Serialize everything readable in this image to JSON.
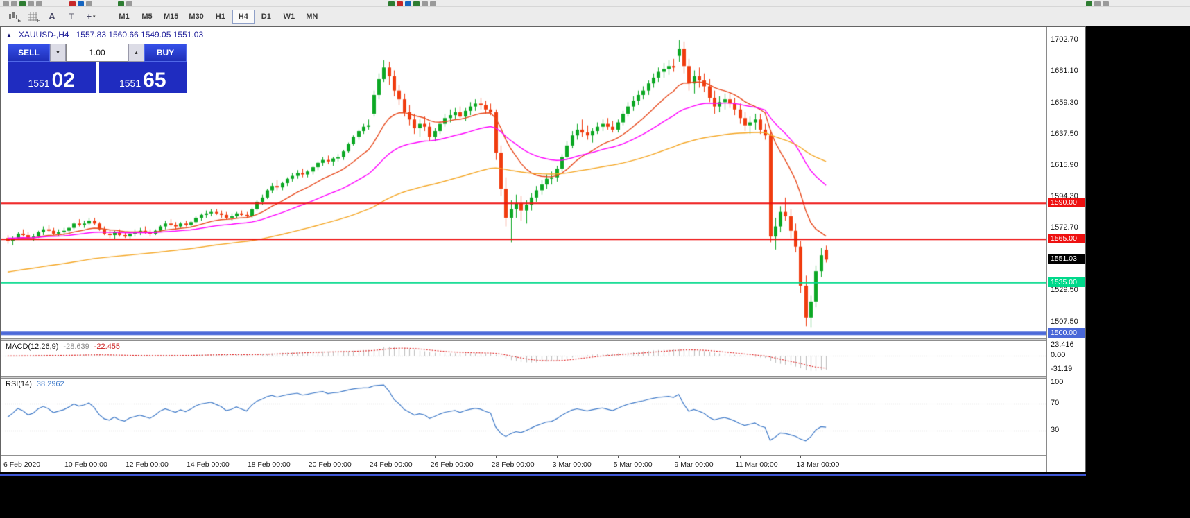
{
  "icons": {
    "triangle_up": "▲",
    "caret_down": "▼",
    "caret_up": "▲",
    "dropdown": "▾"
  },
  "toolbar": {
    "tools": [
      {
        "name": "charts-tool",
        "sub": "E"
      },
      {
        "name": "grid-tool",
        "sub": "F"
      },
      {
        "name": "text-label-tool",
        "glyph": "A"
      },
      {
        "name": "text-tool",
        "glyph": "T"
      },
      {
        "name": "crosshair-tool",
        "glyph": "+"
      }
    ],
    "timeframes": [
      "M1",
      "M5",
      "M15",
      "M30",
      "H1",
      "H4",
      "D1",
      "W1",
      "MN"
    ],
    "active_timeframe": "H4"
  },
  "chart": {
    "symbol_period": "XAUUSD-,H4",
    "ohlc_text": "1557.83 1560.66 1549.05 1551.03"
  },
  "trade_panel": {
    "sell_label": "SELL",
    "buy_label": "BUY",
    "volume": "1.00",
    "sell_price_main": "1551",
    "sell_price_pips": "02",
    "buy_price_main": "1551",
    "buy_price_pips": "65"
  },
  "price_axis": {
    "labels": [
      {
        "text": "1702.70",
        "value": 1702.7
      },
      {
        "text": "1681.10",
        "value": 1681.1
      },
      {
        "text": "1659.30",
        "value": 1659.3
      },
      {
        "text": "1637.50",
        "value": 1637.5
      },
      {
        "text": "1615.90",
        "value": 1615.9
      },
      {
        "text": "1594.30",
        "value": 1594.3
      },
      {
        "text": "1572.70",
        "value": 1572.7
      },
      {
        "text": "1529.50",
        "value": 1529.5
      },
      {
        "text": "1507.50",
        "value": 1507.5
      }
    ],
    "current_price": {
      "text": "1551.03",
      "value": 1551.03,
      "bg": "#000000",
      "fg": "#ffffff"
    }
  },
  "hlines": [
    {
      "label": "1590.00",
      "price": 1590.0,
      "color": "#ee1111",
      "thickness": 2
    },
    {
      "label": "1565.00",
      "price": 1565.0,
      "color": "#ee1111",
      "thickness": 2
    },
    {
      "label": "1535.00",
      "price": 1535.0,
      "color": "#00d98b",
      "thickness": 2
    },
    {
      "label": "1500.00",
      "price": 1500.0,
      "color": "#4a68d8",
      "thickness": 5
    }
  ],
  "macd_panel": {
    "name": "MACD(12,26,9)",
    "value1": "-28.639",
    "value2": "-22.455",
    "axis_labels": [
      {
        "text": "23.416",
        "value": 23.416
      },
      {
        "text": "0.00",
        "value": 0
      },
      {
        "text": "-31.19",
        "value": -31.19
      }
    ]
  },
  "rsi_panel": {
    "name": "RSI(14)",
    "value": "38.2962",
    "axis_labels": [
      {
        "text": "100",
        "value": 100
      },
      {
        "text": "70",
        "value": 70
      },
      {
        "text": "30",
        "value": 30
      }
    ],
    "levels": [
      70,
      30
    ]
  },
  "time_axis": {
    "labels": [
      {
        "candle_index": 0,
        "text": "6 Feb 2020"
      },
      {
        "candle_index": 12,
        "text": "10 Feb 00:00"
      },
      {
        "candle_index": 24,
        "text": "12 Feb 00:00"
      },
      {
        "candle_index": 36,
        "text": "14 Feb 00:00"
      },
      {
        "candle_index": 48,
        "text": "18 Feb 00:00"
      },
      {
        "candle_index": 60,
        "text": "20 Feb 00:00"
      },
      {
        "candle_index": 72,
        "text": "24 Feb 00:00"
      },
      {
        "candle_index": 84,
        "text": "26 Feb 00:00"
      },
      {
        "candle_index": 96,
        "text": "28 Feb 00:00"
      },
      {
        "candle_index": 108,
        "text": "3 Mar 00:00"
      },
      {
        "candle_index": 120,
        "text": "5 Mar 00:00"
      },
      {
        "candle_index": 132,
        "text": "9 Mar 00:00"
      },
      {
        "candle_index": 144,
        "text": "11 Mar 00:00"
      },
      {
        "candle_index": 156,
        "text": "13 Mar 00:00"
      }
    ]
  },
  "chart_data": {
    "type": "candlestick",
    "symbol": "XAUUSD",
    "timeframe": "H4",
    "price_range": [
      1496.5,
      1712
    ],
    "colors": {
      "up": "#0ca824",
      "down": "#f03c0f"
    },
    "moving_averages": [
      {
        "name": "fast-ma",
        "color": "#e8491c",
        "period": 14,
        "seed": 1565
      },
      {
        "name": "medium-ma",
        "color": "#ff00ff",
        "period": 34,
        "seed": 1566
      },
      {
        "name": "slow-ma",
        "color": "#f5a623",
        "period": 90,
        "seed": 1542
      }
    ],
    "macd": {
      "fast": 12,
      "slow": 26,
      "signal": 9,
      "histogram_color": "#bdbdbd",
      "signal_color": "#dd0000",
      "range": [
        -44.5,
        33
      ]
    },
    "rsi": {
      "period": 14,
      "color": "#3c78c8",
      "range": [
        -5,
        106
      ]
    },
    "candles": [
      [
        1566,
        1568,
        1562,
        1564
      ],
      [
        1564,
        1567,
        1561,
        1566
      ],
      [
        1566,
        1570,
        1565,
        1569
      ],
      [
        1569,
        1572,
        1567,
        1568
      ],
      [
        1568,
        1570,
        1565,
        1566
      ],
      [
        1566,
        1569,
        1564,
        1567
      ],
      [
        1567,
        1571,
        1566,
        1570
      ],
      [
        1570,
        1574,
        1568,
        1572
      ],
      [
        1572,
        1575,
        1570,
        1571
      ],
      [
        1571,
        1573,
        1568,
        1569
      ],
      [
        1569,
        1572,
        1567,
        1570
      ],
      [
        1570,
        1573,
        1568,
        1571
      ],
      [
        1571,
        1574,
        1569,
        1573
      ],
      [
        1573,
        1577,
        1572,
        1576
      ],
      [
        1576,
        1579,
        1574,
        1575
      ],
      [
        1575,
        1578,
        1573,
        1576
      ],
      [
        1576,
        1580,
        1575,
        1578
      ],
      [
        1578,
        1580,
        1575,
        1576
      ],
      [
        1576,
        1577,
        1571,
        1572
      ],
      [
        1572,
        1574,
        1568,
        1569
      ],
      [
        1569,
        1572,
        1566,
        1568
      ],
      [
        1568,
        1571,
        1565,
        1570
      ],
      [
        1570,
        1572,
        1567,
        1568
      ],
      [
        1568,
        1570,
        1566,
        1567
      ],
      [
        1567,
        1570,
        1565,
        1569
      ],
      [
        1569,
        1572,
        1567,
        1570
      ],
      [
        1570,
        1573,
        1568,
        1571
      ],
      [
        1571,
        1574,
        1569,
        1570
      ],
      [
        1570,
        1572,
        1567,
        1569
      ],
      [
        1569,
        1572,
        1568,
        1571
      ],
      [
        1571,
        1575,
        1570,
        1574
      ],
      [
        1574,
        1578,
        1572,
        1576
      ],
      [
        1576,
        1579,
        1574,
        1575
      ],
      [
        1575,
        1577,
        1572,
        1574
      ],
      [
        1574,
        1577,
        1573,
        1576
      ],
      [
        1576,
        1578,
        1574,
        1575
      ],
      [
        1575,
        1578,
        1573,
        1577
      ],
      [
        1577,
        1581,
        1576,
        1580
      ],
      [
        1580,
        1583,
        1578,
        1582
      ],
      [
        1582,
        1585,
        1580,
        1583
      ],
      [
        1583,
        1586,
        1581,
        1584
      ],
      [
        1584,
        1586,
        1582,
        1583
      ],
      [
        1583,
        1585,
        1580,
        1582
      ],
      [
        1582,
        1584,
        1579,
        1580
      ],
      [
        1580,
        1583,
        1578,
        1581
      ],
      [
        1581,
        1584,
        1580,
        1583
      ],
      [
        1583,
        1585,
        1581,
        1582
      ],
      [
        1582,
        1584,
        1580,
        1581
      ],
      [
        1581,
        1587,
        1580,
        1586
      ],
      [
        1586,
        1592,
        1585,
        1591
      ],
      [
        1591,
        1596,
        1589,
        1594
      ],
      [
        1594,
        1600,
        1593,
        1599
      ],
      [
        1599,
        1604,
        1597,
        1602
      ],
      [
        1602,
        1606,
        1599,
        1601
      ],
      [
        1601,
        1605,
        1599,
        1604
      ],
      [
        1604,
        1608,
        1602,
        1607
      ],
      [
        1607,
        1611,
        1605,
        1609
      ],
      [
        1609,
        1613,
        1607,
        1611
      ],
      [
        1611,
        1614,
        1608,
        1610
      ],
      [
        1610,
        1613,
        1608,
        1612
      ],
      [
        1612,
        1616,
        1610,
        1615
      ],
      [
        1615,
        1619,
        1613,
        1618
      ],
      [
        1618,
        1622,
        1616,
        1620
      ],
      [
        1620,
        1623,
        1617,
        1619
      ],
      [
        1619,
        1622,
        1616,
        1621
      ],
      [
        1621,
        1624,
        1619,
        1622
      ],
      [
        1622,
        1627,
        1620,
        1626
      ],
      [
        1626,
        1632,
        1625,
        1631
      ],
      [
        1631,
        1637,
        1630,
        1636
      ],
      [
        1636,
        1641,
        1634,
        1640
      ],
      [
        1640,
        1645,
        1638,
        1643
      ],
      [
        1643,
        1648,
        1641,
        1644
      ],
      [
        1652,
        1668,
        1650,
        1665
      ],
      [
        1665,
        1680,
        1662,
        1676
      ],
      [
        1676,
        1689,
        1674,
        1684
      ],
      [
        1684,
        1688,
        1672,
        1678
      ],
      [
        1678,
        1682,
        1664,
        1668
      ],
      [
        1668,
        1672,
        1658,
        1662
      ],
      [
        1662,
        1666,
        1650,
        1653
      ],
      [
        1653,
        1658,
        1644,
        1648
      ],
      [
        1648,
        1652,
        1638,
        1642
      ],
      [
        1642,
        1648,
        1636,
        1645
      ],
      [
        1645,
        1650,
        1640,
        1643
      ],
      [
        1643,
        1646,
        1633,
        1636
      ],
      [
        1636,
        1642,
        1633,
        1640
      ],
      [
        1640,
        1647,
        1638,
        1645
      ],
      [
        1645,
        1652,
        1643,
        1649
      ],
      [
        1649,
        1655,
        1646,
        1651
      ],
      [
        1651,
        1656,
        1648,
        1653
      ],
      [
        1653,
        1657,
        1649,
        1650
      ],
      [
        1650,
        1656,
        1647,
        1654
      ],
      [
        1654,
        1660,
        1651,
        1657
      ],
      [
        1657,
        1662,
        1654,
        1659
      ],
      [
        1659,
        1663,
        1655,
        1658
      ],
      [
        1658,
        1661,
        1652,
        1655
      ],
      [
        1655,
        1659,
        1651,
        1653
      ],
      [
        1653,
        1655,
        1620,
        1625
      ],
      [
        1625,
        1630,
        1595,
        1600
      ],
      [
        1600,
        1608,
        1574,
        1580
      ],
      [
        1580,
        1592,
        1563,
        1586
      ],
      [
        1586,
        1596,
        1580,
        1590
      ],
      [
        1590,
        1595,
        1578,
        1585
      ],
      [
        1585,
        1592,
        1576,
        1589
      ],
      [
        1589,
        1597,
        1585,
        1594
      ],
      [
        1594,
        1602,
        1591,
        1599
      ],
      [
        1599,
        1606,
        1596,
        1603
      ],
      [
        1603,
        1610,
        1600,
        1607
      ],
      [
        1607,
        1612,
        1603,
        1608
      ],
      [
        1608,
        1616,
        1605,
        1614
      ],
      [
        1614,
        1624,
        1612,
        1622
      ],
      [
        1622,
        1633,
        1620,
        1630
      ],
      [
        1630,
        1640,
        1628,
        1637
      ],
      [
        1637,
        1645,
        1634,
        1641
      ],
      [
        1641,
        1648,
        1636,
        1639
      ],
      [
        1639,
        1644,
        1634,
        1637
      ],
      [
        1637,
        1642,
        1632,
        1640
      ],
      [
        1640,
        1646,
        1638,
        1643
      ],
      [
        1643,
        1648,
        1640,
        1645
      ],
      [
        1645,
        1649,
        1641,
        1643
      ],
      [
        1643,
        1647,
        1639,
        1641
      ],
      [
        1641,
        1648,
        1639,
        1646
      ],
      [
        1646,
        1654,
        1644,
        1652
      ],
      [
        1652,
        1660,
        1650,
        1657
      ],
      [
        1657,
        1664,
        1654,
        1661
      ],
      [
        1661,
        1668,
        1658,
        1665
      ],
      [
        1665,
        1671,
        1662,
        1668
      ],
      [
        1668,
        1675,
        1665,
        1673
      ],
      [
        1673,
        1680,
        1670,
        1677
      ],
      [
        1677,
        1684,
        1674,
        1681
      ],
      [
        1681,
        1687,
        1677,
        1683
      ],
      [
        1683,
        1689,
        1679,
        1685
      ],
      [
        1685,
        1690,
        1681,
        1684
      ],
      [
        1692,
        1703,
        1688,
        1697
      ],
      [
        1697,
        1702,
        1680,
        1685
      ],
      [
        1685,
        1690,
        1668,
        1673
      ],
      [
        1673,
        1682,
        1666,
        1678
      ],
      [
        1678,
        1684,
        1670,
        1675
      ],
      [
        1675,
        1680,
        1667,
        1671
      ],
      [
        1671,
        1676,
        1660,
        1663
      ],
      [
        1663,
        1668,
        1652,
        1657
      ],
      [
        1657,
        1664,
        1653,
        1660
      ],
      [
        1660,
        1666,
        1655,
        1662
      ],
      [
        1662,
        1667,
        1656,
        1659
      ],
      [
        1659,
        1663,
        1651,
        1655
      ],
      [
        1655,
        1659,
        1645,
        1649
      ],
      [
        1649,
        1653,
        1640,
        1644
      ],
      [
        1644,
        1650,
        1638,
        1646
      ],
      [
        1646,
        1652,
        1641,
        1648
      ],
      [
        1648,
        1652,
        1638,
        1641
      ],
      [
        1641,
        1645,
        1634,
        1637
      ],
      [
        1637,
        1641,
        1563,
        1567
      ],
      [
        1567,
        1580,
        1558,
        1574
      ],
      [
        1574,
        1588,
        1570,
        1584
      ],
      [
        1584,
        1594,
        1578,
        1581
      ],
      [
        1581,
        1586,
        1566,
        1571
      ],
      [
        1571,
        1576,
        1556,
        1560
      ],
      [
        1560,
        1564,
        1528,
        1533
      ],
      [
        1533,
        1540,
        1505,
        1511
      ],
      [
        1511,
        1526,
        1504,
        1522
      ],
      [
        1522,
        1547,
        1518,
        1543
      ],
      [
        1543,
        1559,
        1539,
        1554
      ],
      [
        1557.83,
        1560.66,
        1549.05,
        1551.03
      ]
    ]
  }
}
